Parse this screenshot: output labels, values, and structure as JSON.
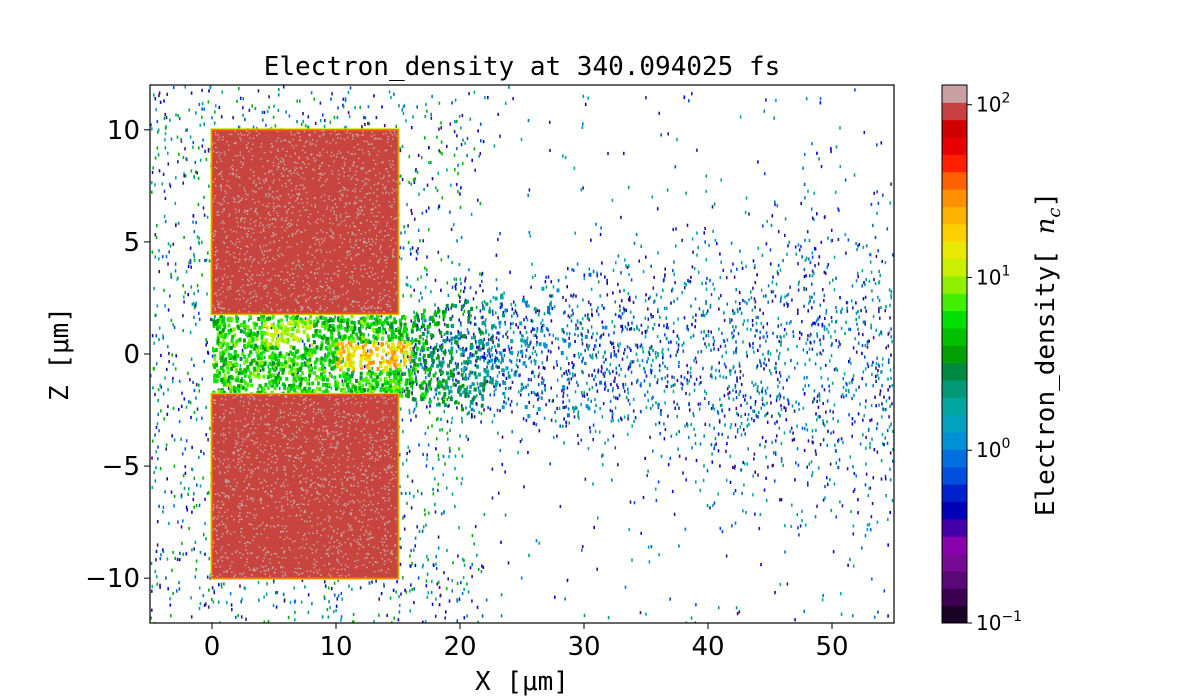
{
  "chart_data": {
    "type": "heatmap",
    "title": "Electron_density at 340.094025 fs",
    "xlabel": "X [μm]",
    "ylabel": "Z [μm]",
    "xlim": [
      -5,
      55
    ],
    "ylim": [
      -12,
      12
    ],
    "x_ticks": [
      0,
      10,
      20,
      30,
      40,
      50
    ],
    "x_tick_labels": [
      "0",
      "10",
      "20",
      "30",
      "40",
      "50"
    ],
    "y_ticks": [
      -10,
      -5,
      0,
      5,
      10
    ],
    "y_tick_labels": [
      "−10",
      "−5",
      "0",
      "5",
      "10"
    ],
    "grid": false,
    "colorbar": {
      "label": "Electron_density[n_c]",
      "scale": "log",
      "range": [
        0.1,
        130
      ],
      "ticks": [
        {
          "value": 0.1,
          "base": "10",
          "exp": "−1"
        },
        {
          "value": 1,
          "base": "10",
          "exp": "0"
        },
        {
          "value": 10,
          "base": "10",
          "exp": "1"
        },
        {
          "value": 100,
          "base": "10",
          "exp": "2"
        }
      ],
      "colors": [
        "#1a0022",
        "#3b0050",
        "#5a0a78",
        "#770a95",
        "#8a00aa",
        "#4400a8",
        "#0000b8",
        "#0022cc",
        "#0050dd",
        "#0070e0",
        "#0090d8",
        "#00a2c0",
        "#00a6a0",
        "#009a7a",
        "#008a40",
        "#00a000",
        "#00c000",
        "#00e000",
        "#40f000",
        "#90f000",
        "#c8f000",
        "#e8e800",
        "#ffd000",
        "#ffb000",
        "#ff9000",
        "#ff6000",
        "#ff2000",
        "#e80000",
        "#d00000",
        "#c94040",
        "#c8a0a0"
      ]
    },
    "regions": [
      {
        "name": "upper-target-block",
        "x": [
          0,
          15
        ],
        "z": [
          1.8,
          10
        ],
        "density": 100
      },
      {
        "name": "lower-target-block",
        "x": [
          0,
          15
        ],
        "z": [
          -10,
          -1.8
        ],
        "density": 100
      },
      {
        "name": "channel-plasma",
        "x": [
          0,
          22
        ],
        "z": [
          -1.8,
          1.8
        ],
        "density": 5
      },
      {
        "name": "hot-spot-1",
        "x": [
          4,
          8
        ],
        "z": [
          0.4,
          1.6
        ],
        "density": 10
      },
      {
        "name": "hot-spot-2",
        "x": [
          10,
          16
        ],
        "z": [
          -0.6,
          0.6
        ],
        "density": 20
      },
      {
        "name": "scattered-electrons",
        "x": [
          -5,
          55
        ],
        "z": [
          -12,
          12
        ],
        "density": 0.5
      }
    ]
  }
}
